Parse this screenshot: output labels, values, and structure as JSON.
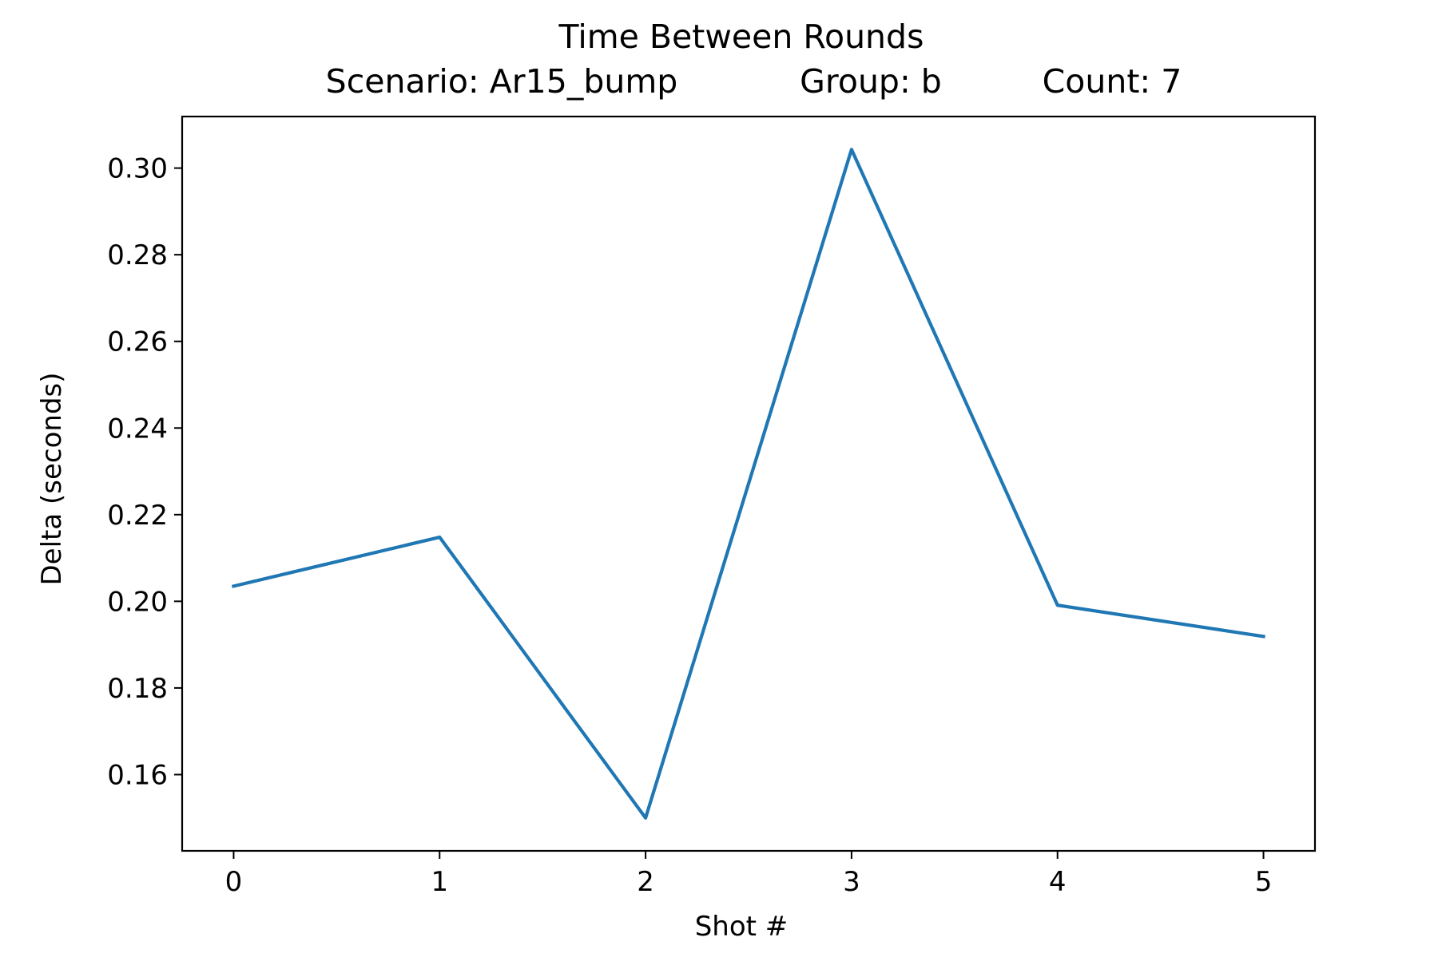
{
  "chart_data": {
    "type": "line",
    "title": "Time Between Rounds",
    "subtitle": {
      "scenario": "Scenario: Ar15_bump",
      "group": "Group: b",
      "count": "Count: 7"
    },
    "xlabel": "Shot #",
    "ylabel": "Delta (seconds)",
    "x": [
      0,
      1,
      2,
      3,
      4,
      5
    ],
    "series": [
      {
        "values": [
          0.2035,
          0.2148,
          0.15,
          0.3043,
          0.1991,
          0.1919
        ],
        "color": "#1f77b4"
      }
    ],
    "xlim": [
      -0.25,
      5.25
    ],
    "ylim": [
      0.1424,
      0.3119
    ],
    "x_ticks": [
      0,
      1,
      2,
      3,
      4,
      5
    ],
    "y_ticks": [
      0.16,
      0.18,
      0.2,
      0.22,
      0.24,
      0.26,
      0.28,
      0.3
    ],
    "y_tick_labels": [
      "0.16",
      "0.18",
      "0.20",
      "0.22",
      "0.24",
      "0.26",
      "0.28",
      "0.30"
    ],
    "grid": false,
    "legend": false
  }
}
